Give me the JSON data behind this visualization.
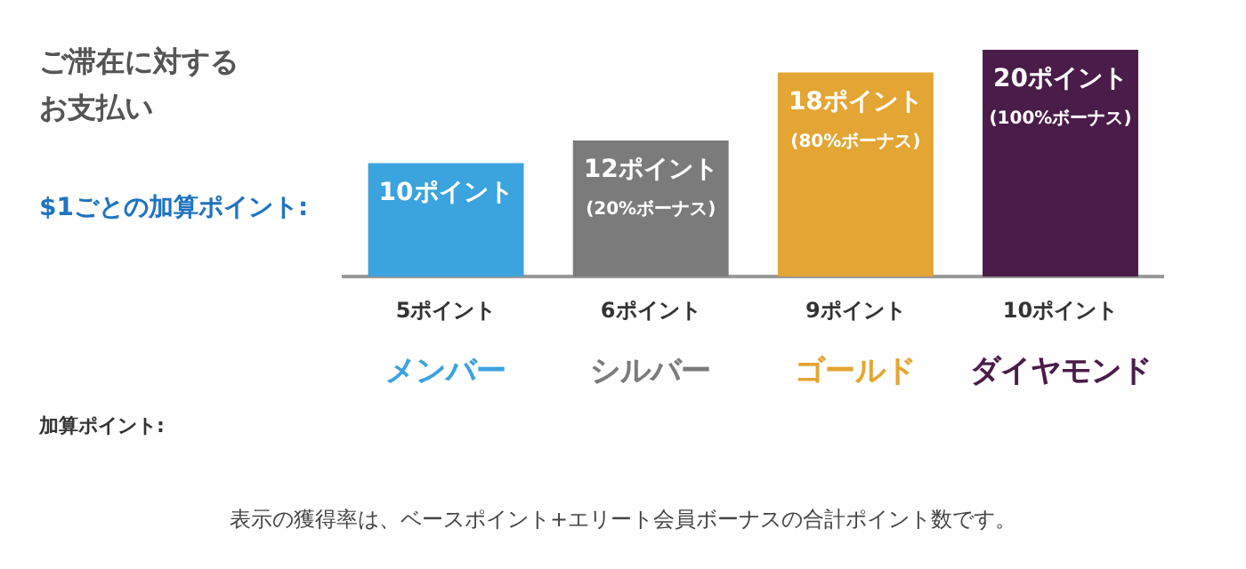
{
  "chart_data": {
    "type": "bar",
    "title": "ご滞在に対するお支払い",
    "subtitle": "$1ごとの加算ポイント:",
    "categories": [
      "メンバー",
      "シルバー",
      "ゴールド",
      "ダイヤモンド"
    ],
    "values": [
      10,
      12,
      18,
      20
    ],
    "colors": [
      "#3ba3dd",
      "#7b7b7b",
      "#e3a533",
      "#4a1c49"
    ],
    "value_labels": [
      "10ポイント",
      "12ポイント\n(20%ボーナス)",
      "18ポイント\n(80%ボーナス)",
      "20ポイント\n(100%ボーナス)"
    ],
    "annotations": [
      "加算ポイント:",
      "5ポイント",
      "6ポイント",
      "9ポイント",
      "10ポイント",
      "表示の獲得率は、ベースポイント+エリート会員ボーナスの合計ポイント数です。"
    ],
    "grid": false,
    "legend": false
  }
}
